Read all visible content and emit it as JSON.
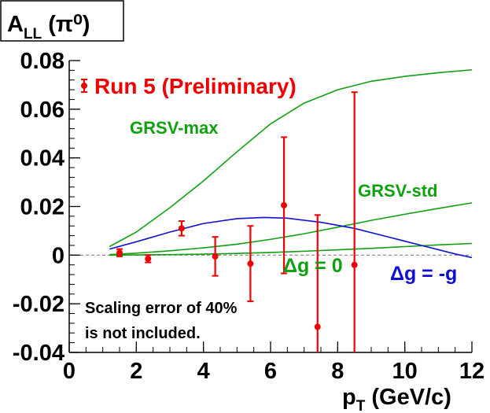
{
  "title": {
    "main": "A",
    "sub": "LL",
    "rest": " (π⁰)"
  },
  "legend": {
    "label": "Run 5 (Preliminary)"
  },
  "note": {
    "line1": "Scaling error of 40%",
    "line2": "is not included."
  },
  "colors": {
    "data": "#ee0000",
    "green": "#10a010",
    "blue": "#1010d0",
    "axis": "#000000",
    "zero_line": "#808080"
  },
  "chart_data": {
    "type": "line",
    "title": "A_LL (π⁰)",
    "xlabel": "p_T (GeV/c)",
    "ylabel": "",
    "xlim": [
      0,
      12
    ],
    "ylim": [
      -0.04,
      0.08
    ],
    "x_ticks": [
      "0",
      "2",
      "4",
      "6",
      "8",
      "10",
      "12"
    ],
    "y_ticks": [
      "-0.04",
      "-0.02",
      "0",
      "0.02",
      "0.04",
      "0.06",
      "0.08"
    ],
    "zero_line": true,
    "grid": false,
    "legend_position": "top-left",
    "data_points": {
      "name": "Run 5 (Preliminary)",
      "x": [
        1.5,
        2.35,
        3.35,
        4.35,
        5.4,
        6.4,
        7.4,
        8.5
      ],
      "y": [
        0.001,
        -0.0015,
        0.011,
        -0.0005,
        -0.0035,
        0.0205,
        -0.0295,
        -0.004
      ],
      "err": [
        0.0015,
        0.0015,
        0.003,
        0.008,
        0.0155,
        0.028,
        0.046,
        0.071
      ]
    },
    "series": [
      {
        "name": "GRSV-max",
        "label_text": "GRSV-max",
        "color": "#10a010",
        "x": [
          1.2,
          2,
          3,
          4,
          5,
          6,
          7,
          8,
          9,
          10,
          11,
          12
        ],
        "y": [
          0.0035,
          0.0095,
          0.0195,
          0.0305,
          0.0425,
          0.054,
          0.0625,
          0.068,
          0.0715,
          0.0735,
          0.075,
          0.0762
        ]
      },
      {
        "name": "GRSV-std",
        "label_text": "GRSV-std",
        "color": "#10a010",
        "x": [
          1.2,
          2,
          3,
          4,
          5,
          6,
          7,
          8,
          9,
          10,
          11,
          12
        ],
        "y": [
          0.0002,
          0.0008,
          0.0018,
          0.003,
          0.0045,
          0.0065,
          0.0088,
          0.0115,
          0.0143,
          0.0168,
          0.0192,
          0.0215
        ]
      },
      {
        "name": "Δg = 0",
        "label_text": "Δg = 0",
        "color": "#10a010",
        "x": [
          1.2,
          2,
          3,
          4,
          5,
          6,
          7,
          8,
          9,
          10,
          11,
          12
        ],
        "y": [
          0.0,
          0.0001,
          0.0002,
          0.0004,
          0.0007,
          0.0011,
          0.0016,
          0.0022,
          0.0028,
          0.0035,
          0.0042,
          0.0048
        ]
      },
      {
        "name": "Δg = -g",
        "label_text": "Δg = -g",
        "color": "#1010d0",
        "x": [
          1.2,
          2,
          3,
          4,
          5,
          5.8,
          6.5,
          7.5,
          8.5,
          9.5,
          10.5,
          11.5,
          12
        ],
        "y": [
          0.0025,
          0.0055,
          0.0095,
          0.013,
          0.015,
          0.0155,
          0.0152,
          0.0135,
          0.011,
          0.0075,
          0.004,
          0.0005,
          -0.001
        ]
      }
    ]
  }
}
